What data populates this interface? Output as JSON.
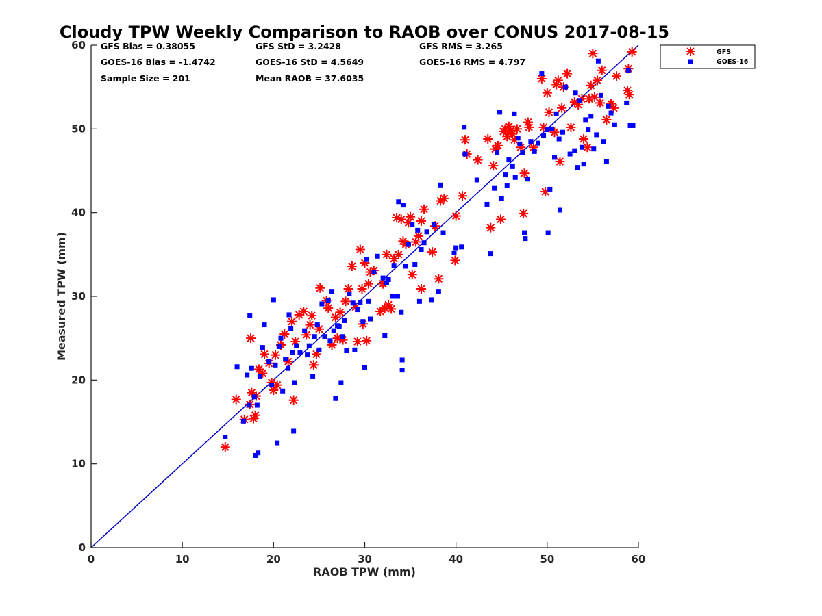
{
  "chart_data": {
    "type": "scatter",
    "title": "Cloudy TPW Weekly Comparison to RAOB over CONUS 2017-08-15",
    "xlabel": "RAOB TPW (mm)",
    "ylabel": "Measured TPW (mm)",
    "xlim": [
      0,
      60
    ],
    "ylim": [
      0,
      60
    ],
    "xticks": [
      0,
      10,
      20,
      30,
      40,
      50,
      60
    ],
    "yticks": [
      0,
      10,
      20,
      30,
      40,
      50,
      60
    ],
    "grid": false,
    "legend_position": "outside-top-right",
    "reference_line": {
      "x": [
        0,
        60
      ],
      "y": [
        0,
        60
      ],
      "color": "#0000cc"
    },
    "stats": {
      "gfs_bias": "GFS Bias = 0.38055",
      "goes_bias": "GOES-16 Bias = -1.4742",
      "sample_size": "Sample Size = 201",
      "gfs_std": "GFS StD = 3.2428",
      "goes_std": "GOES-16 StD = 4.5649",
      "mean_raob": "Mean RAOB = 37.6035",
      "gfs_rms": "GFS RMS = 3.265",
      "goes_rms": "GOES-16 RMS = 4.797"
    },
    "series": [
      {
        "name": "GFS",
        "marker": "asterisk",
        "color": "#ff0000",
        "points": [
          [
            14.7,
            12.0
          ],
          [
            15.9,
            17.7
          ],
          [
            16.8,
            15.3
          ],
          [
            17.4,
            17.1
          ],
          [
            17.5,
            25.0
          ],
          [
            17.6,
            18.5
          ],
          [
            17.8,
            15.4
          ],
          [
            18.0,
            15.8
          ],
          [
            18.1,
            18.1
          ],
          [
            18.4,
            21.3
          ],
          [
            18.8,
            20.8
          ],
          [
            19.0,
            23.1
          ],
          [
            19.5,
            22.0
          ],
          [
            19.8,
            19.7
          ],
          [
            20.0,
            18.8
          ],
          [
            20.2,
            23.0
          ],
          [
            20.4,
            19.4
          ],
          [
            20.8,
            24.2
          ],
          [
            21.2,
            25.5
          ],
          [
            21.6,
            22.2
          ],
          [
            22.0,
            27.0
          ],
          [
            22.2,
            17.6
          ],
          [
            22.4,
            24.6
          ],
          [
            22.8,
            27.8
          ],
          [
            23.3,
            28.2
          ],
          [
            23.6,
            25.4
          ],
          [
            24.0,
            26.6
          ],
          [
            24.2,
            27.7
          ],
          [
            24.4,
            21.8
          ],
          [
            24.7,
            23.1
          ],
          [
            25.0,
            26.1
          ],
          [
            25.1,
            31.0
          ],
          [
            25.8,
            29.5
          ],
          [
            26.0,
            28.6
          ],
          [
            26.4,
            24.2
          ],
          [
            26.8,
            27.5
          ],
          [
            27.0,
            25.0
          ],
          [
            27.3,
            28.1
          ],
          [
            27.6,
            24.8
          ],
          [
            27.9,
            29.4
          ],
          [
            28.2,
            30.9
          ],
          [
            28.6,
            33.6
          ],
          [
            29.0,
            28.7
          ],
          [
            29.2,
            24.6
          ],
          [
            29.5,
            35.6
          ],
          [
            29.7,
            30.9
          ],
          [
            29.8,
            26.7
          ],
          [
            30.0,
            34.0
          ],
          [
            30.2,
            24.7
          ],
          [
            30.4,
            31.5
          ],
          [
            30.6,
            32.9
          ],
          [
            31.0,
            33.1
          ],
          [
            31.7,
            28.2
          ],
          [
            32.0,
            31.5
          ],
          [
            32.2,
            28.6
          ],
          [
            32.4,
            35.0
          ],
          [
            32.6,
            29.0
          ],
          [
            32.9,
            28.5
          ],
          [
            33.2,
            34.5
          ],
          [
            33.5,
            39.4
          ],
          [
            33.7,
            35.0
          ],
          [
            34.0,
            39.2
          ],
          [
            34.2,
            36.6
          ],
          [
            34.5,
            36.2
          ],
          [
            34.8,
            38.8
          ],
          [
            35.0,
            39.5
          ],
          [
            35.2,
            32.6
          ],
          [
            35.6,
            36.5
          ],
          [
            35.9,
            37.2
          ],
          [
            36.2,
            39.0
          ],
          [
            36.2,
            30.9
          ],
          [
            36.5,
            40.4
          ],
          [
            37.4,
            35.3
          ],
          [
            37.7,
            38.4
          ],
          [
            38.1,
            32.1
          ],
          [
            38.3,
            41.4
          ],
          [
            38.7,
            41.7
          ],
          [
            39.9,
            34.3
          ],
          [
            40.0,
            39.6
          ],
          [
            40.7,
            42.0
          ],
          [
            41.0,
            48.7
          ],
          [
            41.2,
            47.0
          ],
          [
            42.4,
            46.3
          ],
          [
            43.5,
            48.8
          ],
          [
            43.8,
            38.2
          ],
          [
            44.1,
            45.6
          ],
          [
            44.3,
            47.6
          ],
          [
            44.6,
            48.0
          ],
          [
            44.9,
            39.2
          ],
          [
            45.2,
            49.7
          ],
          [
            45.4,
            50.0
          ],
          [
            45.6,
            49.1
          ],
          [
            45.8,
            50.3
          ],
          [
            46.0,
            49.8
          ],
          [
            46.2,
            49.4
          ],
          [
            46.4,
            48.7
          ],
          [
            46.7,
            50.0
          ],
          [
            47.1,
            47.8
          ],
          [
            47.4,
            39.9
          ],
          [
            47.5,
            44.7
          ],
          [
            47.9,
            50.8
          ],
          [
            48.0,
            50.2
          ],
          [
            48.5,
            47.8
          ],
          [
            49.4,
            56.0
          ],
          [
            49.6,
            50.2
          ],
          [
            49.8,
            42.5
          ],
          [
            50.0,
            54.3
          ],
          [
            50.2,
            52.0
          ],
          [
            50.8,
            49.6
          ],
          [
            51.0,
            55.3
          ],
          [
            51.2,
            55.8
          ],
          [
            51.4,
            46.1
          ],
          [
            51.6,
            52.5
          ],
          [
            51.8,
            55.0
          ],
          [
            52.2,
            56.6
          ],
          [
            52.6,
            50.2
          ],
          [
            53.0,
            53.2
          ],
          [
            53.4,
            52.9
          ],
          [
            53.8,
            53.6
          ],
          [
            54.0,
            48.8
          ],
          [
            54.4,
            47.8
          ],
          [
            54.6,
            53.6
          ],
          [
            54.8,
            55.2
          ],
          [
            55.0,
            59.0
          ],
          [
            55.2,
            53.8
          ],
          [
            55.5,
            55.8
          ],
          [
            55.8,
            53.1
          ],
          [
            56.0,
            57.0
          ],
          [
            56.5,
            51.1
          ],
          [
            57.0,
            53.0
          ],
          [
            57.3,
            52.5
          ],
          [
            57.6,
            56.3
          ],
          [
            58.8,
            54.6
          ],
          [
            58.9,
            57.2
          ],
          [
            59.0,
            54.1
          ],
          [
            59.3,
            59.2
          ]
        ]
      },
      {
        "name": "GOES-16",
        "marker": "square",
        "color": "#0000ff",
        "points": [
          [
            14.7,
            13.2
          ],
          [
            16.0,
            21.6
          ],
          [
            16.7,
            15.1
          ],
          [
            17.1,
            20.6
          ],
          [
            17.3,
            17.0
          ],
          [
            17.4,
            27.7
          ],
          [
            17.6,
            21.4
          ],
          [
            17.9,
            18.0
          ],
          [
            18.0,
            11.0
          ],
          [
            18.2,
            17.0
          ],
          [
            18.3,
            11.3
          ],
          [
            18.5,
            20.4
          ],
          [
            18.8,
            23.9
          ],
          [
            19.0,
            26.6
          ],
          [
            19.5,
            22.2
          ],
          [
            19.8,
            19.4
          ],
          [
            20.0,
            29.6
          ],
          [
            20.2,
            21.8
          ],
          [
            20.4,
            12.5
          ],
          [
            20.6,
            24.0
          ],
          [
            20.8,
            25.0
          ],
          [
            21.0,
            18.7
          ],
          [
            21.3,
            22.5
          ],
          [
            21.6,
            21.4
          ],
          [
            21.7,
            27.8
          ],
          [
            21.9,
            26.2
          ],
          [
            22.1,
            23.3
          ],
          [
            22.2,
            13.9
          ],
          [
            22.3,
            19.7
          ],
          [
            22.5,
            24.1
          ],
          [
            22.9,
            23.3
          ],
          [
            23.4,
            25.9
          ],
          [
            23.7,
            23.0
          ],
          [
            23.9,
            24.1
          ],
          [
            24.3,
            20.4
          ],
          [
            24.5,
            25.2
          ],
          [
            24.8,
            26.6
          ],
          [
            25.0,
            23.6
          ],
          [
            25.3,
            29.1
          ],
          [
            25.6,
            25.2
          ],
          [
            26.0,
            29.5
          ],
          [
            26.2,
            24.7
          ],
          [
            26.4,
            30.6
          ],
          [
            26.6,
            25.9
          ],
          [
            26.8,
            17.8
          ],
          [
            27.0,
            26.5
          ],
          [
            27.2,
            26.4
          ],
          [
            27.4,
            19.7
          ],
          [
            27.6,
            25.2
          ],
          [
            27.8,
            27.1
          ],
          [
            28.0,
            23.5
          ],
          [
            28.3,
            30.3
          ],
          [
            28.7,
            29.2
          ],
          [
            28.9,
            23.6
          ],
          [
            29.2,
            28.4
          ],
          [
            29.5,
            29.3
          ],
          [
            29.8,
            27.0
          ],
          [
            30.0,
            21.5
          ],
          [
            30.2,
            34.4
          ],
          [
            30.4,
            29.4
          ],
          [
            30.6,
            27.3
          ],
          [
            31.0,
            32.9
          ],
          [
            31.4,
            34.8
          ],
          [
            32.0,
            32.2
          ],
          [
            32.2,
            25.3
          ],
          [
            32.4,
            31.6
          ],
          [
            32.6,
            32.0
          ],
          [
            33.0,
            30.0
          ],
          [
            33.2,
            33.7
          ],
          [
            33.6,
            30.0
          ],
          [
            33.7,
            41.3
          ],
          [
            34.0,
            28.1
          ],
          [
            34.1,
            21.2
          ],
          [
            34.1,
            22.4
          ],
          [
            34.2,
            40.9
          ],
          [
            34.5,
            33.6
          ],
          [
            34.8,
            36.2
          ],
          [
            35.2,
            38.6
          ],
          [
            35.5,
            33.8
          ],
          [
            35.8,
            37.9
          ],
          [
            36.0,
            29.4
          ],
          [
            36.2,
            35.6
          ],
          [
            36.5,
            36.4
          ],
          [
            36.8,
            37.7
          ],
          [
            37.3,
            29.6
          ],
          [
            37.6,
            38.6
          ],
          [
            38.1,
            30.6
          ],
          [
            38.3,
            43.3
          ],
          [
            38.6,
            37.6
          ],
          [
            39.8,
            35.2
          ],
          [
            40.0,
            35.8
          ],
          [
            40.6,
            35.9
          ],
          [
            40.9,
            50.2
          ],
          [
            41.0,
            47.0
          ],
          [
            42.3,
            43.9
          ],
          [
            43.4,
            41.0
          ],
          [
            43.8,
            35.1
          ],
          [
            44.2,
            42.9
          ],
          [
            44.5,
            47.2
          ],
          [
            44.8,
            52.0
          ],
          [
            45.0,
            41.7
          ],
          [
            45.4,
            44.5
          ],
          [
            45.6,
            43.2
          ],
          [
            45.8,
            46.3
          ],
          [
            46.2,
            45.5
          ],
          [
            46.4,
            51.8
          ],
          [
            46.5,
            44.2
          ],
          [
            46.8,
            48.9
          ],
          [
            47.0,
            48.2
          ],
          [
            47.3,
            47.2
          ],
          [
            47.5,
            37.6
          ],
          [
            47.6,
            36.9
          ],
          [
            47.8,
            44.0
          ],
          [
            48.2,
            48.5
          ],
          [
            48.6,
            47.3
          ],
          [
            49.0,
            48.3
          ],
          [
            49.4,
            56.6
          ],
          [
            49.6,
            49.2
          ],
          [
            50.0,
            49.9
          ],
          [
            50.1,
            37.6
          ],
          [
            50.3,
            42.8
          ],
          [
            50.5,
            50.0
          ],
          [
            50.8,
            46.6
          ],
          [
            51.0,
            51.8
          ],
          [
            51.3,
            48.8
          ],
          [
            51.4,
            40.3
          ],
          [
            51.7,
            49.6
          ],
          [
            52.0,
            55.0
          ],
          [
            52.5,
            47.0
          ],
          [
            53.0,
            47.4
          ],
          [
            53.1,
            54.3
          ],
          [
            53.3,
            45.4
          ],
          [
            53.5,
            53.4
          ],
          [
            53.8,
            47.8
          ],
          [
            54.0,
            45.8
          ],
          [
            54.2,
            51.1
          ],
          [
            54.5,
            49.9
          ],
          [
            54.8,
            51.5
          ],
          [
            55.1,
            47.6
          ],
          [
            55.4,
            49.3
          ],
          [
            55.6,
            58.1
          ],
          [
            55.9,
            54.0
          ],
          [
            56.2,
            48.5
          ],
          [
            56.5,
            46.1
          ],
          [
            56.7,
            52.7
          ],
          [
            57.0,
            51.9
          ],
          [
            57.4,
            50.5
          ],
          [
            58.7,
            53.1
          ],
          [
            58.9,
            57.0
          ],
          [
            59.1,
            50.4
          ],
          [
            59.4,
            50.4
          ]
        ]
      }
    ]
  }
}
